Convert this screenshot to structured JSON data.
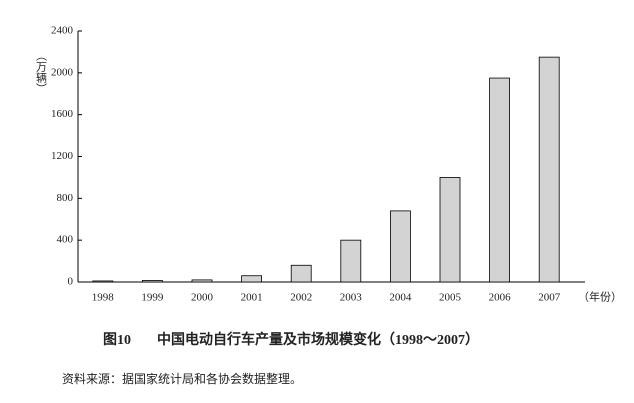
{
  "chart_data": {
    "type": "bar",
    "figure_number": "图10",
    "title": "中国电动自行车产量及市场规模变化（1998～2007）",
    "source": "资料来源：据国家统计局和各协会数据整理。",
    "y_label": "（万辆）",
    "x_label": "（年份）",
    "categories": [
      "1998",
      "1999",
      "2000",
      "2001",
      "2002",
      "2003",
      "2004",
      "2005",
      "2006",
      "2007"
    ],
    "values": [
      10,
      15,
      20,
      60,
      160,
      400,
      680,
      1000,
      1950,
      2150
    ],
    "color": "#d3d3d3",
    "ylim": [
      0,
      2400
    ],
    "yticks": [
      0,
      400,
      800,
      1200,
      1600,
      2000,
      2400
    ]
  }
}
